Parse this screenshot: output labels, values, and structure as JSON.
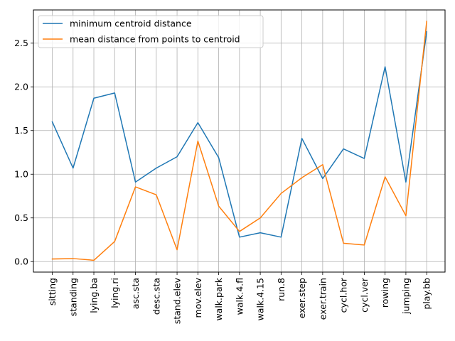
{
  "chart_data": {
    "type": "line",
    "categories": [
      "sitting",
      "standing",
      "lying.ba",
      "lying.ri",
      "asc.sta",
      "desc.sta",
      "stand.elev",
      "mov.elev",
      "walk.park",
      "walk.4.fl",
      "walk.4.15",
      "run.8",
      "exer.step",
      "exer.train",
      "cycl.hor",
      "cycl.ver",
      "rowing",
      "jumping",
      "play.bb"
    ],
    "series": [
      {
        "name": "minimum centroid distance",
        "color": "#1f77b4",
        "values": [
          1.6,
          1.07,
          1.87,
          1.93,
          0.91,
          1.07,
          1.2,
          1.59,
          1.19,
          0.28,
          0.33,
          0.28,
          1.41,
          0.95,
          1.29,
          1.18,
          2.23,
          0.91,
          2.63
        ]
      },
      {
        "name": "mean distance from points to centroid",
        "color": "#ff7f0e",
        "values": [
          0.03,
          0.035,
          0.015,
          0.23,
          0.855,
          0.765,
          0.135,
          1.38,
          0.635,
          0.345,
          0.5,
          0.78,
          0.96,
          1.11,
          0.21,
          0.19,
          0.97,
          0.525,
          2.75
        ]
      }
    ],
    "yticks": [
      0.0,
      0.5,
      1.0,
      1.5,
      2.0,
      2.5
    ],
    "ytick_labels": [
      "0.0",
      "0.5",
      "1.0",
      "1.5",
      "2.0",
      "2.5"
    ],
    "ylim": [
      -0.12,
      2.88
    ],
    "title": "",
    "xlabel": "",
    "ylabel": "",
    "grid": true,
    "legend_position": "top-left"
  }
}
